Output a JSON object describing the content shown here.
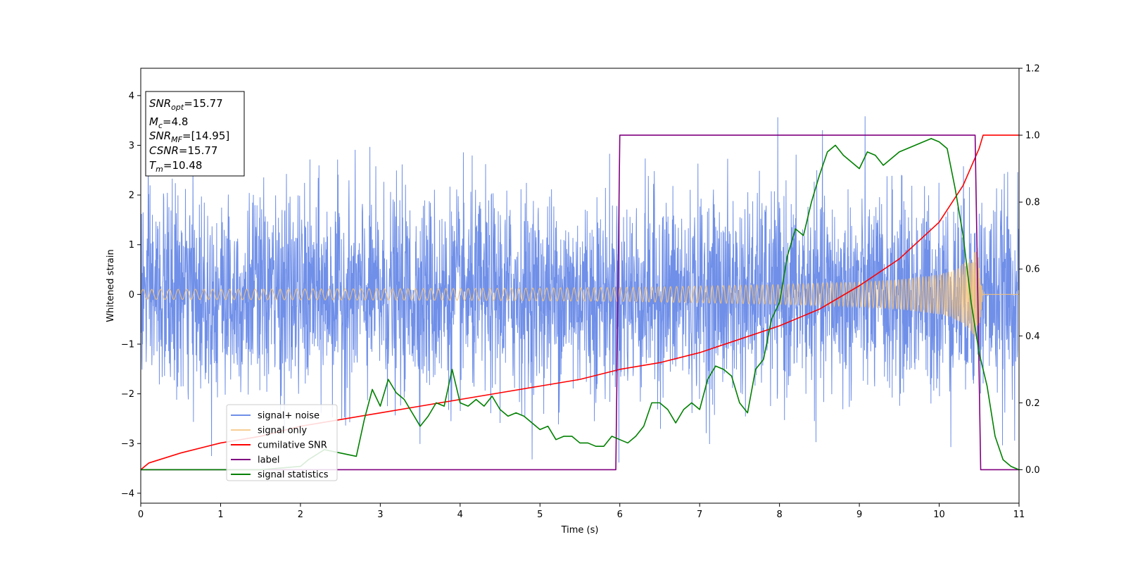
{
  "chart_data": {
    "type": "line",
    "xlabel": "Time (s)",
    "ylabel": "Whitened strain",
    "xlim": [
      0,
      11
    ],
    "ylim": [
      -4.2,
      4.55
    ],
    "y2lim": [
      -0.1,
      1.2
    ],
    "x_ticks": [
      0,
      1,
      2,
      3,
      4,
      5,
      6,
      7,
      8,
      9,
      10,
      11
    ],
    "y_ticks": [
      -4,
      -3,
      -2,
      -1,
      0,
      1,
      2,
      3,
      4
    ],
    "y2_ticks": [
      0.0,
      0.2,
      0.4,
      0.6,
      0.8,
      1.0,
      1.2
    ],
    "y2_tick_labels": [
      "0.0",
      "0.2",
      "0.4",
      "0.6",
      "0.8",
      "1.0",
      "1.2"
    ],
    "grid": false,
    "legend_position": "lower-left",
    "annotation_box": {
      "position": "top-left",
      "lines": [
        {
          "base": "SNR",
          "sub": "opt",
          "value": "=15.77"
        },
        {
          "base": "M",
          "sub": "c",
          "value": "=4.8"
        },
        {
          "base": "SNR",
          "sub": "MF",
          "value": "=[14.95]"
        },
        {
          "base": "CSNR",
          "sub": "",
          "value": "=15.77"
        },
        {
          "base": "T",
          "sub": "m",
          "value": "=10.48"
        }
      ]
    },
    "series": [
      {
        "name": "signal+ noise",
        "color": "#6f8fe8",
        "axis": "left",
        "kind": "noise",
        "amplitude_sigma": 1.0,
        "t_end": 11
      },
      {
        "name": "signal only",
        "color": "#f5c27a",
        "axis": "left",
        "kind": "chirp",
        "t_merge": 10.48,
        "envelope": {
          "t": [
            0,
            2,
            4,
            6,
            8,
            9,
            9.5,
            10,
            10.2,
            10.4,
            10.48,
            10.55,
            11
          ],
          "a": [
            0.1,
            0.11,
            0.12,
            0.14,
            0.2,
            0.25,
            0.3,
            0.4,
            0.5,
            0.75,
            0.95,
            0.0,
            0.0
          ]
        }
      },
      {
        "name": "cumilative SNR",
        "color": "#ff0000",
        "axis": "right",
        "x": [
          0,
          0.1,
          0.5,
          1,
          1.5,
          2,
          2.5,
          3,
          3.5,
          4,
          4.5,
          5,
          5.5,
          6,
          6.5,
          7,
          7.5,
          8,
          8.5,
          9,
          9.5,
          10,
          10.3,
          10.5,
          10.55,
          11
        ],
        "y": [
          0.0,
          0.02,
          0.05,
          0.08,
          0.1,
          0.13,
          0.15,
          0.17,
          0.19,
          0.21,
          0.23,
          0.25,
          0.27,
          0.3,
          0.32,
          0.35,
          0.39,
          0.43,
          0.48,
          0.55,
          0.63,
          0.74,
          0.85,
          0.96,
          1.0,
          1.0
        ]
      },
      {
        "name": "label",
        "color": "#800080",
        "axis": "right",
        "x": [
          0,
          5.95,
          6.0,
          10.45,
          10.52,
          11
        ],
        "y": [
          0,
          0,
          1,
          1,
          0,
          0
        ]
      },
      {
        "name": "signal statistics",
        "color": "#008000",
        "axis": "right",
        "x": [
          0,
          0.5,
          1,
          1.5,
          2,
          2.1,
          2.3,
          2.5,
          2.7,
          2.8,
          2.9,
          3.0,
          3.1,
          3.2,
          3.3,
          3.5,
          3.6,
          3.7,
          3.8,
          3.9,
          4.0,
          4.1,
          4.2,
          4.3,
          4.4,
          4.5,
          4.6,
          4.7,
          4.8,
          4.9,
          5.0,
          5.1,
          5.2,
          5.3,
          5.4,
          5.5,
          5.6,
          5.7,
          5.8,
          5.9,
          6.0,
          6.1,
          6.2,
          6.3,
          6.4,
          6.5,
          6.6,
          6.7,
          6.8,
          6.9,
          7.0,
          7.1,
          7.2,
          7.3,
          7.4,
          7.5,
          7.6,
          7.7,
          7.8,
          7.9,
          8.0,
          8.1,
          8.2,
          8.3,
          8.4,
          8.5,
          8.6,
          8.7,
          8.8,
          8.9,
          9.0,
          9.1,
          9.2,
          9.3,
          9.4,
          9.5,
          9.6,
          9.7,
          9.8,
          9.9,
          10.0,
          10.1,
          10.2,
          10.3,
          10.4,
          10.5,
          10.6,
          10.7,
          10.8,
          10.9,
          11.0
        ],
        "y": [
          0.0,
          0.0,
          0.0,
          0.0,
          0.01,
          0.03,
          0.06,
          0.05,
          0.04,
          0.15,
          0.24,
          0.19,
          0.27,
          0.23,
          0.21,
          0.13,
          0.16,
          0.2,
          0.19,
          0.3,
          0.2,
          0.19,
          0.21,
          0.19,
          0.22,
          0.18,
          0.16,
          0.17,
          0.16,
          0.14,
          0.12,
          0.13,
          0.09,
          0.1,
          0.1,
          0.08,
          0.08,
          0.07,
          0.07,
          0.1,
          0.09,
          0.08,
          0.1,
          0.13,
          0.2,
          0.2,
          0.18,
          0.14,
          0.18,
          0.2,
          0.18,
          0.27,
          0.31,
          0.3,
          0.28,
          0.2,
          0.17,
          0.3,
          0.33,
          0.45,
          0.5,
          0.64,
          0.72,
          0.7,
          0.8,
          0.88,
          0.95,
          0.97,
          0.94,
          0.92,
          0.9,
          0.95,
          0.94,
          0.91,
          0.93,
          0.95,
          0.96,
          0.97,
          0.98,
          0.99,
          0.98,
          0.96,
          0.84,
          0.7,
          0.5,
          0.35,
          0.25,
          0.1,
          0.03,
          0.01,
          0.0
        ]
      }
    ]
  }
}
